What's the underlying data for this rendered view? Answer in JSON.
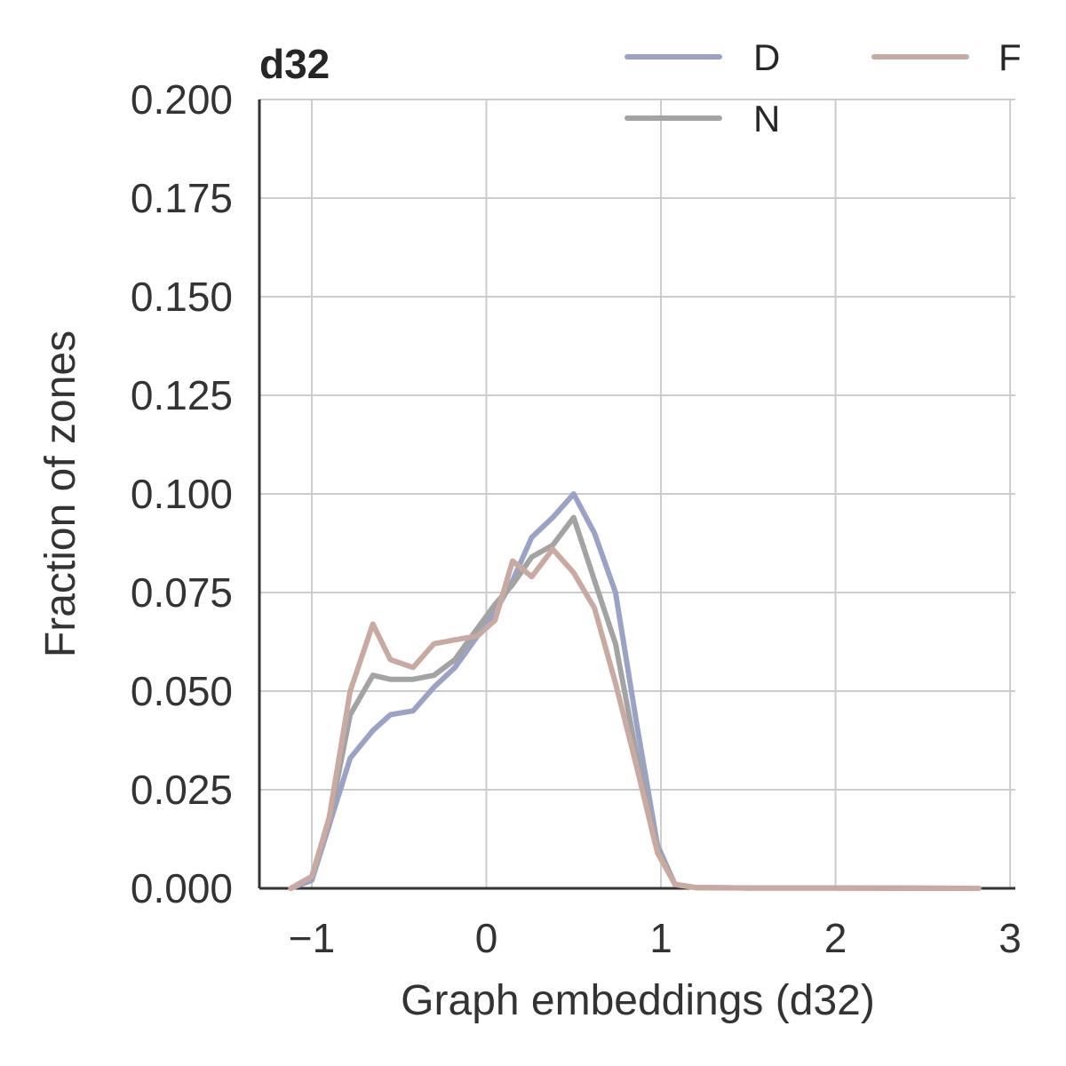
{
  "chart_data": {
    "type": "line",
    "title": "d32",
    "xlabel": "Graph embeddings (d32)",
    "ylabel": "Fraction of zones",
    "xlim": [
      -1.3,
      3.03
    ],
    "ylim": [
      0,
      0.2
    ],
    "xticks": [
      -1,
      0,
      1,
      2,
      3
    ],
    "xtick_labels": [
      "−1",
      "0",
      "1",
      "2",
      "3"
    ],
    "yticks": [
      0,
      0.025,
      0.05,
      0.075,
      0.1,
      0.125,
      0.15,
      0.175,
      0.2
    ],
    "ytick_labels": [
      "0.000",
      "0.025",
      "0.050",
      "0.075",
      "0.100",
      "0.125",
      "0.150",
      "0.175",
      "0.200"
    ],
    "grid": true,
    "legend_position": "top-right",
    "series": [
      {
        "name": "D",
        "color": "#9aa3c6",
        "points": [
          [
            -1.12,
            0.0
          ],
          [
            -1.0,
            0.002
          ],
          [
            -0.9,
            0.016
          ],
          [
            -0.78,
            0.033
          ],
          [
            -0.65,
            0.04
          ],
          [
            -0.55,
            0.044
          ],
          [
            -0.42,
            0.045
          ],
          [
            -0.3,
            0.051
          ],
          [
            -0.18,
            0.056
          ],
          [
            -0.05,
            0.064
          ],
          [
            0.05,
            0.07
          ],
          [
            0.15,
            0.078
          ],
          [
            0.26,
            0.089
          ],
          [
            0.38,
            0.094
          ],
          [
            0.5,
            0.1
          ],
          [
            0.62,
            0.09
          ],
          [
            0.74,
            0.075
          ],
          [
            0.86,
            0.042
          ],
          [
            0.98,
            0.011
          ],
          [
            1.08,
            0.001
          ],
          [
            1.2,
            0.0002
          ],
          [
            1.5,
            0.0001
          ],
          [
            2.0,
            0.0001
          ],
          [
            2.5,
            0.0
          ],
          [
            2.82,
            0.0
          ]
        ]
      },
      {
        "name": "N",
        "color": "#a3a3a3",
        "points": [
          [
            -1.12,
            0.0
          ],
          [
            -1.0,
            0.003
          ],
          [
            -0.9,
            0.017
          ],
          [
            -0.78,
            0.044
          ],
          [
            -0.65,
            0.054
          ],
          [
            -0.55,
            0.053
          ],
          [
            -0.42,
            0.053
          ],
          [
            -0.3,
            0.054
          ],
          [
            -0.18,
            0.058
          ],
          [
            -0.05,
            0.066
          ],
          [
            0.05,
            0.072
          ],
          [
            0.15,
            0.077
          ],
          [
            0.26,
            0.084
          ],
          [
            0.38,
            0.087
          ],
          [
            0.5,
            0.094
          ],
          [
            0.62,
            0.078
          ],
          [
            0.74,
            0.062
          ],
          [
            0.86,
            0.034
          ],
          [
            0.98,
            0.01
          ],
          [
            1.08,
            0.001
          ],
          [
            1.2,
            0.0002
          ],
          [
            1.5,
            0.0001
          ],
          [
            2.0,
            0.0001
          ],
          [
            2.5,
            0.0
          ],
          [
            2.82,
            0.0
          ]
        ]
      },
      {
        "name": "F",
        "color": "#c9aaa2",
        "points": [
          [
            -1.12,
            0.0
          ],
          [
            -1.0,
            0.003
          ],
          [
            -0.9,
            0.018
          ],
          [
            -0.78,
            0.05
          ],
          [
            -0.65,
            0.067
          ],
          [
            -0.55,
            0.058
          ],
          [
            -0.42,
            0.056
          ],
          [
            -0.3,
            0.062
          ],
          [
            -0.18,
            0.063
          ],
          [
            -0.05,
            0.064
          ],
          [
            0.05,
            0.068
          ],
          [
            0.15,
            0.083
          ],
          [
            0.26,
            0.079
          ],
          [
            0.38,
            0.086
          ],
          [
            0.5,
            0.08
          ],
          [
            0.62,
            0.071
          ],
          [
            0.74,
            0.052
          ],
          [
            0.86,
            0.031
          ],
          [
            0.98,
            0.009
          ],
          [
            1.08,
            0.001
          ],
          [
            1.2,
            0.0002
          ],
          [
            1.5,
            0.0001
          ],
          [
            2.0,
            0.0001
          ],
          [
            2.5,
            0.0001
          ],
          [
            2.82,
            0.0
          ]
        ]
      }
    ]
  }
}
